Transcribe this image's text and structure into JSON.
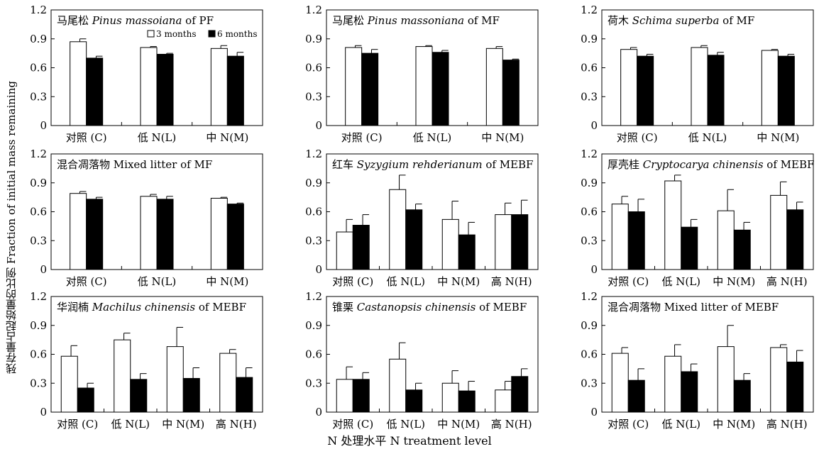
{
  "y_axis_label": "残存量占起始量的比例 Fraction of initial mass remaining",
  "x_axis_label": "N 处理水平 N treatment level",
  "legend": [
    {
      "label": "3 months",
      "color": "#ffffff"
    },
    {
      "label": "6 months",
      "color": "#000000"
    }
  ],
  "chart_data": [
    {
      "type": "bar",
      "title": "马尾松 Pinus massoiana of PF",
      "title_cn": "马尾松",
      "title_latin": "Pinus massoiana",
      "title_suffix": "of PF",
      "categories": [
        "对照 (C)",
        "低 N(L)",
        "中 N(M)"
      ],
      "ylim": [
        0,
        1.2
      ],
      "yticks": [
        "0",
        "0.3",
        "0.6",
        "0.9",
        "1.2"
      ],
      "series": [
        {
          "name": "3 months",
          "values": [
            0.87,
            0.81,
            0.8
          ],
          "errors": [
            0.03,
            0.01,
            0.03
          ]
        },
        {
          "name": "6 months",
          "values": [
            0.7,
            0.74,
            0.72
          ],
          "errors": [
            0.02,
            0.01,
            0.04
          ]
        }
      ]
    },
    {
      "type": "bar",
      "title": "马尾松 Pinus massoniana of MF",
      "title_cn": "马尾松",
      "title_latin": "Pinus massoniana",
      "title_suffix": "of MF",
      "categories": [
        "对照 (C)",
        "低 N(L)",
        "中 N(M)"
      ],
      "ylim": [
        0,
        1.2
      ],
      "yticks": [
        "0",
        "0.3",
        "0.6",
        "0.9",
        "1.2"
      ],
      "series": [
        {
          "name": "3 months",
          "values": [
            0.81,
            0.82,
            0.8
          ],
          "errors": [
            0.02,
            0.01,
            0.02
          ]
        },
        {
          "name": "6 months",
          "values": [
            0.75,
            0.76,
            0.68
          ],
          "errors": [
            0.04,
            0.02,
            0.01
          ]
        }
      ]
    },
    {
      "type": "bar",
      "title": "荷木 Schima superba of MF",
      "title_cn": "荷木",
      "title_latin": "Schima superba",
      "title_suffix": "of MF",
      "categories": [
        "对照 (C)",
        "低 N(L)",
        "中 N(M)"
      ],
      "ylim": [
        0,
        1.2
      ],
      "yticks": [
        "0",
        "0.3",
        "0.6",
        "0.9",
        "1.2"
      ],
      "series": [
        {
          "name": "3 months",
          "values": [
            0.79,
            0.81,
            0.78
          ],
          "errors": [
            0.02,
            0.02,
            0.01
          ]
        },
        {
          "name": "6 months",
          "values": [
            0.72,
            0.73,
            0.72
          ],
          "errors": [
            0.02,
            0.03,
            0.02
          ]
        }
      ]
    },
    {
      "type": "bar",
      "title": "混合凋落物 Mixed litter of MF",
      "title_cn": "混合凋落物",
      "title_latin": "",
      "title_suffix": "Mixed litter of MF",
      "categories": [
        "对照 (C)",
        "低 N(L)",
        "中 N(M)"
      ],
      "ylim": [
        0,
        1.2
      ],
      "yticks": [
        "0",
        "0.3",
        "0.6",
        "0.9",
        "1.2"
      ],
      "series": [
        {
          "name": "3 months",
          "values": [
            0.79,
            0.76,
            0.74
          ],
          "errors": [
            0.02,
            0.02,
            0.01
          ]
        },
        {
          "name": "6 months",
          "values": [
            0.73,
            0.73,
            0.68
          ],
          "errors": [
            0.02,
            0.03,
            0.01
          ]
        }
      ]
    },
    {
      "type": "bar",
      "title": "红车 Syzygium rehderianum of MEBF",
      "title_cn": "红车",
      "title_latin": "Syzygium rehderianum",
      "title_suffix": "of MEBF",
      "categories": [
        "对照 (C)",
        "低 N(L)",
        "中 N(M)",
        "高 N(H)"
      ],
      "ylim": [
        0,
        1.2
      ],
      "yticks": [
        "0",
        "0.3",
        "0.6",
        "0.9",
        "1.2"
      ],
      "series": [
        {
          "name": "3 months",
          "values": [
            0.39,
            0.83,
            0.52,
            0.57
          ],
          "errors": [
            0.13,
            0.15,
            0.19,
            0.12
          ]
        },
        {
          "name": "6 months",
          "values": [
            0.46,
            0.62,
            0.36,
            0.57
          ],
          "errors": [
            0.11,
            0.06,
            0.13,
            0.15
          ]
        }
      ]
    },
    {
      "type": "bar",
      "title": "厚壳桂 Cryptocarya chinensis of MEBF",
      "title_cn": "厚壳桂",
      "title_latin": "Cryptocarya chinensis",
      "title_suffix": "of MEBF",
      "categories": [
        "对照 (C)",
        "低 N(L)",
        "中 N(M)",
        "高 N(H)"
      ],
      "ylim": [
        0,
        1.2
      ],
      "yticks": [
        "0",
        "0.3",
        "0.6",
        "0.9",
        "1.2"
      ],
      "series": [
        {
          "name": "3 months",
          "values": [
            0.68,
            0.92,
            0.61,
            0.77
          ],
          "errors": [
            0.08,
            0.06,
            0.22,
            0.14
          ]
        },
        {
          "name": "6 months",
          "values": [
            0.6,
            0.44,
            0.41,
            0.62
          ],
          "errors": [
            0.13,
            0.08,
            0.08,
            0.08
          ]
        }
      ]
    },
    {
      "type": "bar",
      "title": "华润楠 Machilus chinensis of MEBF",
      "title_cn": "华润楠",
      "title_latin": "Machilus chinensis",
      "title_suffix": "of MEBF",
      "categories": [
        "对照 (C)",
        "低 N(L)",
        "中 N(M)",
        "高 N(H)"
      ],
      "ylim": [
        0,
        1.2
      ],
      "yticks": [
        "0",
        "0.3",
        "0.6",
        "0.9",
        "1.2"
      ],
      "series": [
        {
          "name": "3 months",
          "values": [
            0.58,
            0.75,
            0.68,
            0.61
          ],
          "errors": [
            0.11,
            0.07,
            0.2,
            0.04
          ]
        },
        {
          "name": "6 months",
          "values": [
            0.25,
            0.34,
            0.35,
            0.36
          ],
          "errors": [
            0.05,
            0.06,
            0.11,
            0.1
          ]
        }
      ]
    },
    {
      "type": "bar",
      "title": "锥栗 Castanopsis chinensis of MEBF",
      "title_cn": "锥栗",
      "title_latin": "Castanopsis chinensis",
      "title_suffix": "of MEBF",
      "categories": [
        "对照 (C)",
        "低 N(L)",
        "中 N(M)",
        "高 N(H)"
      ],
      "ylim": [
        0,
        1.2
      ],
      "yticks": [
        "0",
        "0.3",
        "0.6",
        "0.9",
        "1.2"
      ],
      "series": [
        {
          "name": "3 months",
          "values": [
            0.34,
            0.55,
            0.3,
            0.23
          ],
          "errors": [
            0.13,
            0.17,
            0.13,
            0.09
          ]
        },
        {
          "name": "6 months",
          "values": [
            0.34,
            0.23,
            0.22,
            0.37
          ],
          "errors": [
            0.07,
            0.07,
            0.1,
            0.08
          ]
        }
      ]
    },
    {
      "type": "bar",
      "title": "混合凋落物 Mixed litter of MEBF",
      "title_cn": "混合凋落物",
      "title_latin": "",
      "title_suffix": "Mixed litter of MEBF",
      "categories": [
        "对照 (C)",
        "低 N(L)",
        "中 N(M)",
        "高 N(H)"
      ],
      "ylim": [
        0,
        1.2
      ],
      "yticks": [
        "0",
        "0.3",
        "0.6",
        "0.9",
        "1.2"
      ],
      "series": [
        {
          "name": "3 months",
          "values": [
            0.61,
            0.58,
            0.68,
            0.67
          ],
          "errors": [
            0.06,
            0.12,
            0.22,
            0.03
          ]
        },
        {
          "name": "6 months",
          "values": [
            0.33,
            0.42,
            0.33,
            0.52
          ],
          "errors": [
            0.12,
            0.08,
            0.07,
            0.12
          ]
        }
      ]
    }
  ]
}
